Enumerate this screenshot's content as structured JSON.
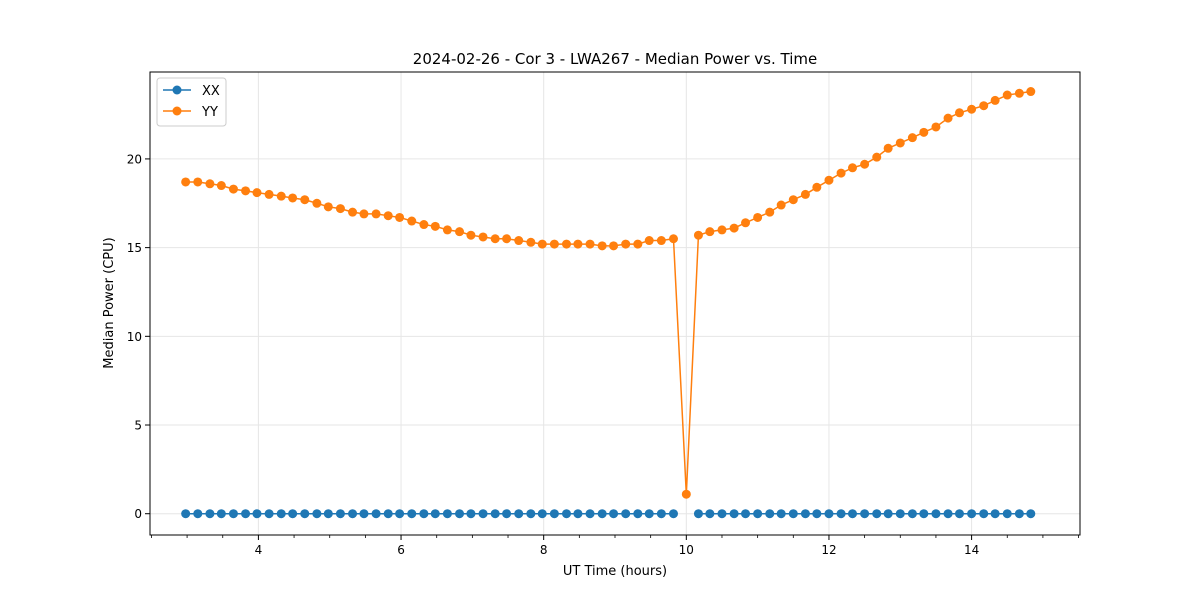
{
  "chart_data": {
    "type": "line",
    "title": "2024-02-26 - Cor 3 - LWA267 - Median Power vs. Time",
    "xlabel": "UT Time (hours)",
    "ylabel": "Median Power (CPU)",
    "xlim": [
      2.48,
      15.52
    ],
    "ylim": [
      -1.2,
      24.9
    ],
    "xticks": [
      4,
      6,
      8,
      10,
      12,
      14
    ],
    "xtick_labels": [
      "4",
      "6",
      "8",
      "10",
      "12",
      "14"
    ],
    "yticks": [
      0,
      5,
      10,
      15,
      20
    ],
    "ytick_labels": [
      "0",
      "5",
      "10",
      "15",
      "20"
    ],
    "grid": true,
    "legend_position": "top-left",
    "x": [
      2.98,
      3.15,
      3.32,
      3.48,
      3.65,
      3.82,
      3.98,
      4.15,
      4.32,
      4.48,
      4.65,
      4.82,
      4.98,
      5.15,
      5.32,
      5.48,
      5.65,
      5.82,
      5.98,
      6.15,
      6.32,
      6.48,
      6.65,
      6.82,
      6.98,
      7.15,
      7.32,
      7.48,
      7.65,
      7.82,
      7.98,
      8.15,
      8.32,
      8.48,
      8.65,
      8.82,
      8.98,
      9.15,
      9.32,
      9.48,
      9.65,
      9.82,
      10.0,
      10.17,
      10.33,
      10.5,
      10.67,
      10.83,
      11.0,
      11.17,
      11.33,
      11.5,
      11.67,
      11.83,
      12.0,
      12.17,
      12.33,
      12.5,
      12.67,
      12.83,
      13.0,
      13.17,
      13.33,
      13.5,
      13.67,
      13.83,
      14.0,
      14.17,
      14.33,
      14.5,
      14.67,
      14.83
    ],
    "series": [
      {
        "name": "XX",
        "color": "#1f77b4",
        "values": [
          0,
          0,
          0,
          0,
          0,
          0,
          0,
          0,
          0,
          0,
          0,
          0,
          0,
          0,
          0,
          0,
          0,
          0,
          0,
          0,
          0,
          0,
          0,
          0,
          0,
          0,
          0,
          0,
          0,
          0,
          0,
          0,
          0,
          0,
          0,
          0,
          0,
          0,
          0,
          0,
          0,
          0,
          null,
          0,
          0,
          0,
          0,
          0,
          0,
          0,
          0,
          0,
          0,
          0,
          0,
          0,
          0,
          0,
          0,
          0,
          0,
          0,
          0,
          0,
          0,
          0,
          0,
          0,
          0,
          0,
          0,
          0
        ]
      },
      {
        "name": "YY",
        "color": "#ff7f0e",
        "values": [
          18.7,
          18.7,
          18.6,
          18.5,
          18.3,
          18.2,
          18.1,
          18.0,
          17.9,
          17.8,
          17.7,
          17.5,
          17.3,
          17.2,
          17.0,
          16.9,
          16.9,
          16.8,
          16.7,
          16.5,
          16.3,
          16.2,
          16.0,
          15.9,
          15.7,
          15.6,
          15.5,
          15.5,
          15.4,
          15.3,
          15.2,
          15.2,
          15.2,
          15.2,
          15.2,
          15.1,
          15.1,
          15.2,
          15.2,
          15.4,
          15.4,
          15.5,
          1.1,
          15.7,
          15.9,
          16.0,
          16.1,
          16.4,
          16.7,
          17.0,
          17.4,
          17.7,
          18.0,
          18.4,
          18.8,
          19.2,
          19.5,
          19.7,
          20.1,
          20.6,
          20.9,
          21.2,
          21.5,
          21.8,
          22.3,
          22.6,
          22.8,
          23.0,
          23.3,
          23.6,
          23.7,
          23.8
        ]
      }
    ]
  }
}
